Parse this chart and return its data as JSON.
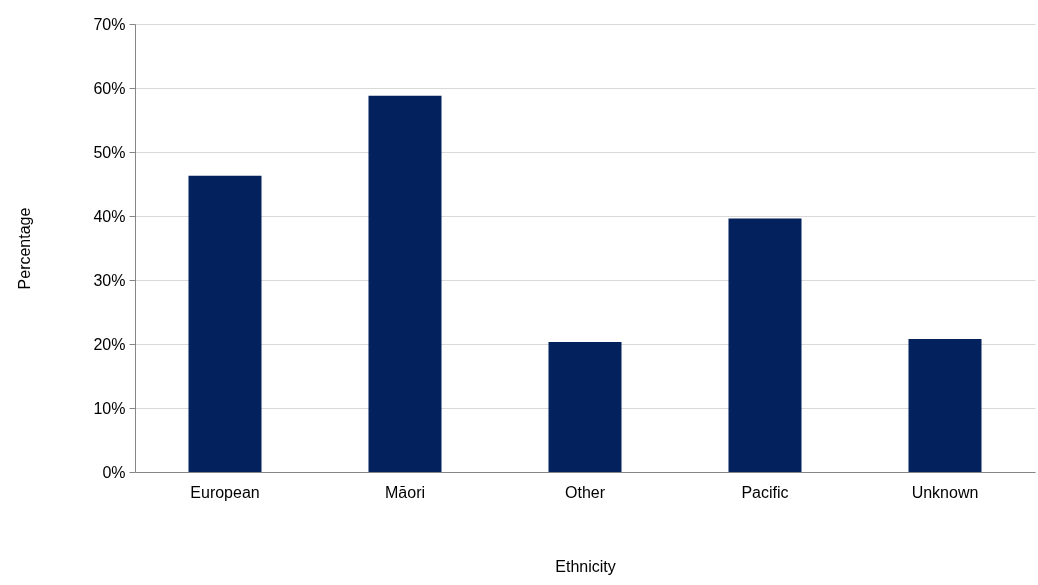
{
  "chart_data": {
    "type": "bar",
    "xlabel": "Ethnicity",
    "ylabel": "Percentage",
    "categories": [
      "European",
      "Māori",
      "Other",
      "Pacific",
      "Unknown"
    ],
    "values": [
      46.3,
      58.8,
      20.3,
      39.6,
      20.8
    ],
    "color": "#03215d",
    "ylim": [
      0,
      70
    ],
    "yticks": [
      {
        "value": 0,
        "label": "0%"
      },
      {
        "value": 10,
        "label": "10%"
      },
      {
        "value": 20,
        "label": "20%"
      },
      {
        "value": 30,
        "label": "30%"
      },
      {
        "value": 40,
        "label": "40%"
      },
      {
        "value": 50,
        "label": "50%"
      },
      {
        "value": 60,
        "label": "60%"
      },
      {
        "value": 70,
        "label": "70%"
      }
    ],
    "grid": "y"
  }
}
